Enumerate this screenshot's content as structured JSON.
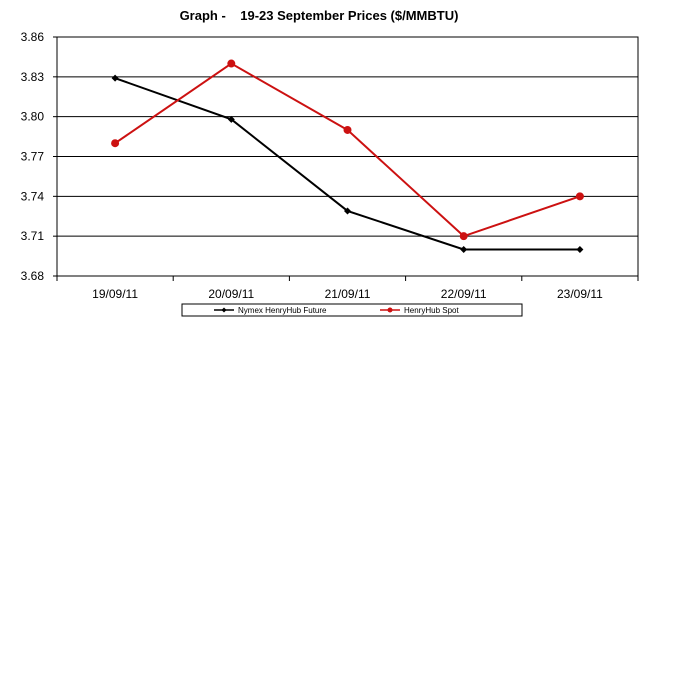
{
  "chart_data": {
    "type": "line",
    "title": "Graph -    19-23 September Prices ($/MMBTU)",
    "categories": [
      "19/09/11",
      "20/09/11",
      "21/09/11",
      "22/09/11",
      "23/09/11"
    ],
    "ylim": [
      3.68,
      3.86
    ],
    "yticks": [
      "3.86",
      "3.83",
      "3.80",
      "3.77",
      "3.74",
      "3.71",
      "3.68"
    ],
    "grid": "horizontal",
    "legend_position": "bottom",
    "series": [
      {
        "name": "Nymex HenryHub Future",
        "color": "#000000",
        "marker": "diamond",
        "values": [
          3.829,
          3.798,
          3.729,
          3.7,
          3.7
        ]
      },
      {
        "name": "HenryHub Spot",
        "color": "#cc1111",
        "marker": "circle",
        "values": [
          3.78,
          3.84,
          3.79,
          3.71,
          3.74
        ]
      }
    ]
  }
}
